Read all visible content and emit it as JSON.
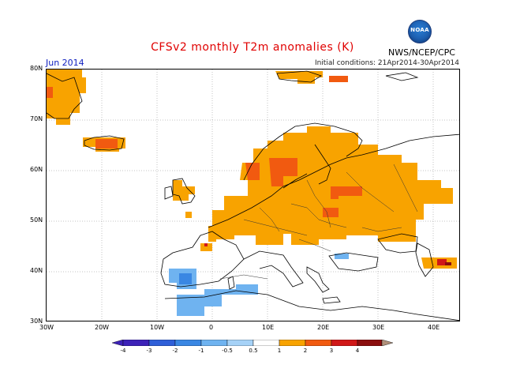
{
  "header": {
    "title": "CFSv2 monthly T2m anomalies (K)",
    "month": "Jun 2014",
    "initial_conditions": "Initial conditions: 21Apr2014-30Apr2014",
    "agency": "NWS/NCEP/CPC",
    "logo_text": "NOAA"
  },
  "axes": {
    "lon_labels": [
      "30W",
      "20W",
      "10W",
      "0",
      "10E",
      "20E",
      "30E",
      "40E"
    ],
    "lat_labels": [
      "80N",
      "70N",
      "60N",
      "50N",
      "40N",
      "30N"
    ]
  },
  "colorbar": {
    "labels": [
      "-4",
      "-3",
      "-2",
      "-1",
      "-0.5",
      "0.5",
      "1",
      "2",
      "3",
      "4"
    ],
    "colors": [
      "#3d22b8",
      "#2f5fd8",
      "#3a87e3",
      "#6fb3f0",
      "#a6d2f7",
      "#ffffff",
      "#f8a300",
      "#f15a10",
      "#d01818",
      "#8b0e0e",
      "#b0907a"
    ]
  },
  "colors": {
    "orange": "#f8a300",
    "redorange": "#f15a10",
    "red": "#d01818",
    "darkred": "#8b0e0e",
    "blue1": "#6fb3f0",
    "blue2": "#3a87e3"
  }
}
